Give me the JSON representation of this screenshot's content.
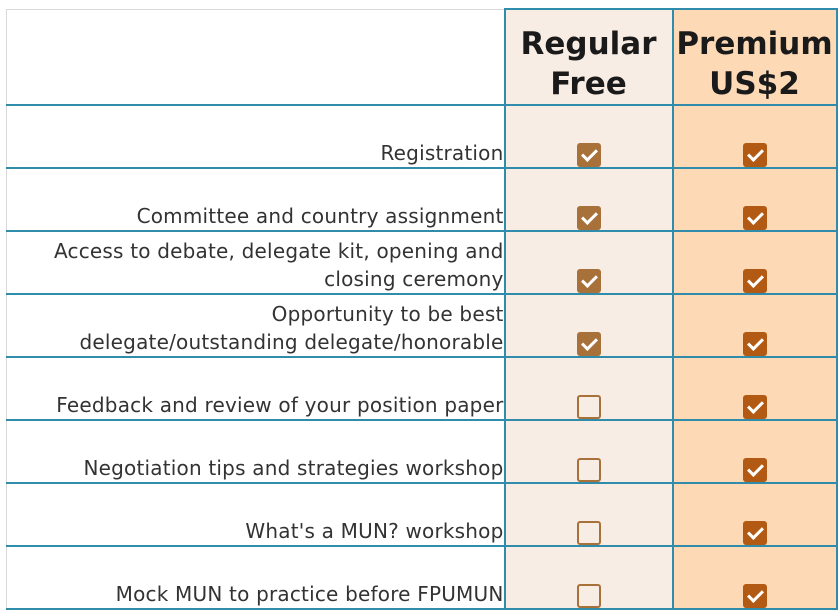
{
  "plans": [
    {
      "name_line1": "Regular",
      "name_line2": "Free"
    },
    {
      "name_line1": "Premium",
      "name_line2": "US$2"
    }
  ],
  "colors": {
    "border": "#2f8dab",
    "regular_bg": "#f8ede4",
    "premium_bg": "#fdd9b5",
    "regular_check": "#a8713a",
    "premium_check": "#b25a13"
  },
  "features": [
    {
      "line1": "",
      "line2": "Registration",
      "regular": true,
      "premium": true
    },
    {
      "line1": "",
      "line2": "Committee and country assignment",
      "regular": true,
      "premium": true
    },
    {
      "line1": "Access to debate, delegate kit, opening and",
      "line2": "closing ceremony",
      "regular": true,
      "premium": true
    },
    {
      "line1": "Opportunity to be best",
      "line2": "delegate/outstanding delegate/honorable",
      "regular": true,
      "premium": true
    },
    {
      "line1": "",
      "line2": "Feedback and review of your position paper",
      "regular": false,
      "premium": true
    },
    {
      "line1": "",
      "line2": "Negotiation tips and strategies workshop",
      "regular": false,
      "premium": true
    },
    {
      "line1": "",
      "line2": "What's a MUN? workshop",
      "regular": false,
      "premium": true
    },
    {
      "line1": "",
      "line2": "Mock MUN to practice before FPUMUN",
      "regular": false,
      "premium": true
    }
  ]
}
